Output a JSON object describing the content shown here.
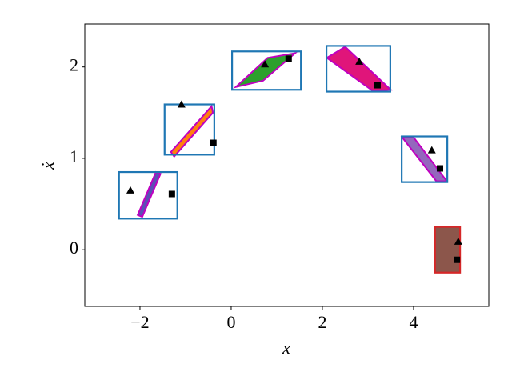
{
  "chart_data": {
    "type": "scatter",
    "xlabel": "x",
    "ylabel": "ẋ",
    "xlim": [
      -3.21,
      5.65
    ],
    "ylim": [
      -0.62,
      2.47
    ],
    "xticks": [
      {
        "value": -2,
        "label": "−2"
      },
      0,
      2,
      4
    ],
    "yticks": [
      0,
      1,
      2
    ],
    "regions": [
      {
        "color": "#5b4fb5",
        "x": [
          -2.05,
          -1.65,
          -1.55,
          -1.95
        ],
        "y": [
          0.38,
          0.85,
          0.83,
          0.36
        ]
      },
      {
        "color": "#ff7f0e",
        "x": [
          -1.32,
          -0.43,
          -0.4,
          -1.25
        ],
        "y": [
          1.07,
          1.57,
          1.5,
          1.02
        ]
      },
      {
        "color": "#2ca02c",
        "x": [
          0.1,
          0.8,
          1.4,
          0.7
        ],
        "y": [
          1.78,
          2.1,
          2.15,
          1.85
        ]
      },
      {
        "color": "#e0157a",
        "x": [
          2.1,
          2.5,
          3.5,
          3.1
        ],
        "y": [
          2.1,
          2.22,
          1.75,
          1.74
        ]
      },
      {
        "color": "#9467bd",
        "x": [
          3.75,
          4.0,
          4.73,
          4.5
        ],
        "y": [
          1.23,
          1.23,
          0.75,
          0.75
        ]
      }
    ],
    "boxes": [
      {
        "color": "#1f77b4",
        "fill": "none",
        "x": [
          -2.46,
          -1.18
        ],
        "y": [
          0.34,
          0.85
        ]
      },
      {
        "color": "#1f77b4",
        "fill": "none",
        "x": [
          -1.46,
          -0.37
        ],
        "y": [
          1.04,
          1.59
        ]
      },
      {
        "color": "#1f77b4",
        "fill": "none",
        "x": [
          0.02,
          1.53
        ],
        "y": [
          1.75,
          2.17
        ]
      },
      {
        "color": "#1f77b4",
        "fill": "none",
        "x": [
          2.09,
          3.49
        ],
        "y": [
          1.73,
          2.23
        ]
      },
      {
        "color": "#1f77b4",
        "fill": "none",
        "x": [
          3.74,
          4.74
        ],
        "y": [
          0.74,
          1.24
        ]
      },
      {
        "color": "#d62728",
        "fill": "#8c564b",
        "x": [
          4.47,
          5.02
        ],
        "y": [
          -0.25,
          0.25
        ]
      }
    ],
    "series": [
      {
        "marker": "triangle",
        "color": "#000000",
        "x": [
          -2.21,
          -1.09,
          0.74,
          2.81,
          4.4,
          4.98
        ],
        "y": [
          0.65,
          1.59,
          2.03,
          2.06,
          1.09,
          0.09
        ]
      },
      {
        "marker": "square",
        "color": "#000000",
        "x": [
          -1.3,
          -0.39,
          1.26,
          3.21,
          4.58,
          4.95
        ],
        "y": [
          0.61,
          1.17,
          2.09,
          1.8,
          0.89,
          -0.11
        ]
      }
    ]
  }
}
